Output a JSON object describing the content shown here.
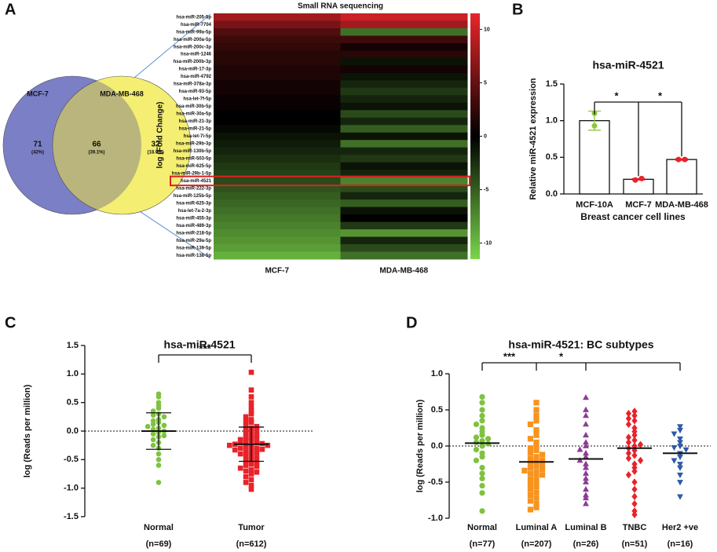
{
  "chart_data": [
    {
      "type": "venn",
      "sets": [
        "MCF-7",
        "MDA-MB-468"
      ],
      "colors": [
        "#7b7fc6",
        "#f4ee72"
      ],
      "overlap_color": "#b9b57c",
      "label_colors": [
        "#3b4aa6",
        "#8f8a2a"
      ],
      "values": [
        71,
        66,
        32
      ],
      "percents": [
        42,
        39.1,
        18.9
      ],
      "percent_labels": [
        "(42%)",
        "(39.1%)",
        "(18.9%)"
      ]
    },
    {
      "type": "heatmap",
      "title": "Small RNA sequencing",
      "ylabel": "log (Fold Change)",
      "rows": [
        "hsa-miR-205-5p",
        "hsa-miR-7704",
        "hsa-miR-99a-5p",
        "hsa-miR-200a-5p",
        "hsa-miR-200c-3p",
        "hsa-miR-1246",
        "hsa-miR-200b-3p",
        "hsa-miR-17-3p",
        "hsa-miR-4792",
        "hsa-miR-378a-3p",
        "hsa-miR-93-5p",
        "hsa-let-7f-5p",
        "hsa-miR-30b-5p",
        "hsa-miR-30a-5p",
        "hsa-miR-21-3p",
        "hsa-miR-21-5p",
        "hsa-let-7i-5p",
        "hsa-miR-29b-3p",
        "hsa-miR-130b-5p",
        "hsa-miR-503-5p",
        "hsa-miR-625-5p",
        "hsa-miR-29b-1-5p",
        "hsa-miR-4521",
        "hsa-miR-222-3p",
        "hsa-miR-125b-5p",
        "hsa-miR-625-3p",
        "hsa-let-7a-2-3p",
        "hsa-miR-455-3p",
        "hsa-miR-489-3p",
        "hsa-miR-218-5p",
        "hsa-miR-29a-5p",
        "hsa-miR-139-5p",
        "hsa-miR-138-5p"
      ],
      "series": [
        {
          "name": "MCF-7",
          "values": [
            8,
            6,
            4,
            3,
            2.5,
            2,
            2,
            1.5,
            1.5,
            1,
            1,
            0.5,
            0.5,
            0,
            0,
            -0.5,
            -1,
            -1.5,
            -2,
            -2.5,
            -3,
            -3.5,
            -4,
            -4.5,
            -5,
            -5.5,
            -6,
            -6.5,
            -7,
            -7.5,
            -8,
            -8.5,
            -9.5
          ]
        },
        {
          "name": "MDA-MB-468",
          "values": [
            10,
            8,
            -6,
            3,
            1,
            2,
            -1,
            1,
            -1,
            -2,
            -3,
            -2,
            -1,
            -4,
            -2,
            -5,
            -1,
            -6,
            -2,
            -3,
            -1,
            -2,
            -7,
            -4,
            -2,
            -5,
            -1,
            0,
            -3,
            -8,
            -2,
            -4,
            -6
          ]
        }
      ],
      "zlim": [
        -11.5,
        11.5
      ],
      "zticks": [
        10,
        5,
        0,
        -5,
        -10
      ],
      "high_color": "#e8262b",
      "mid_color": "#000000",
      "low_color": "#7bd54a",
      "highlight_row": 22
    },
    {
      "type": "bar",
      "title": "hsa-miR-4521",
      "ylabel": "Relative miR-4521 expression",
      "xlabel": "Breast cancer cell lines",
      "categories": [
        "MCF-10A",
        "MCF-7",
        "MDA-MB-468"
      ],
      "values": [
        1.0,
        0.2,
        0.47
      ],
      "errors": [
        0.13,
        0.01,
        0.01
      ],
      "points": [
        [
          1.1,
          0.93
        ],
        [
          0.19,
          0.21
        ],
        [
          0.47,
          0.47
        ]
      ],
      "point_colors": [
        "#8dc63f",
        "#e8232a",
        "#e8232a"
      ],
      "ylim": [
        0,
        1.5
      ],
      "yticks": [
        {
          "value": 0,
          "label": "0.0"
        },
        0.5,
        {
          "value": 1,
          "label": "1.0"
        },
        1.5
      ],
      "brackets": [
        {
          "from": 0,
          "to": 1,
          "label": "*"
        },
        {
          "from": 1,
          "to": 2,
          "label": "*"
        }
      ]
    },
    {
      "type": "dotplot",
      "title": "hsa-miR-4521",
      "ylabel": "log (Reads per million)",
      "categories": [
        "Normal",
        "Tumor"
      ],
      "sublabels": [
        "(n=69)",
        "(n=612)"
      ],
      "colors": [
        "#7fc241",
        "#e8232a"
      ],
      "markers": [
        "circle",
        "square"
      ],
      "points": [
        [
          0.65,
          0.6,
          0.5,
          0.45,
          0.4,
          0.35,
          0.3,
          0.28,
          0.25,
          0.2,
          0.18,
          0.15,
          0.12,
          0.1,
          0.08,
          0.05,
          0.03,
          0.0,
          -0.02,
          -0.05,
          -0.08,
          -0.1,
          -0.15,
          -0.2,
          -0.25,
          -0.3,
          -0.4,
          -0.5,
          -0.6,
          -0.9
        ],
        [
          1.03,
          0.72,
          0.6,
          0.5,
          0.42,
          0.35,
          0.3,
          0.25,
          0.2,
          0.18,
          0.15,
          0.1,
          0.08,
          0.05,
          0.02,
          0.0,
          -0.02,
          -0.05,
          -0.07,
          -0.1,
          -0.12,
          -0.13,
          -0.15,
          -0.17,
          -0.18,
          -0.2,
          -0.2,
          -0.22,
          -0.23,
          -0.25,
          -0.25,
          -0.27,
          -0.28,
          -0.3,
          -0.3,
          -0.32,
          -0.33,
          -0.35,
          -0.37,
          -0.38,
          -0.4,
          -0.42,
          -0.45,
          -0.47,
          -0.5,
          -0.52,
          -0.55,
          -0.58,
          -0.6,
          -0.62,
          -0.65,
          -0.68,
          -0.7,
          -0.72,
          -0.75,
          -0.8,
          -0.85,
          -0.9,
          -0.95,
          -1.02
        ]
      ],
      "means": [
        0.0,
        -0.23
      ],
      "sds": [
        0.32,
        0.3
      ],
      "ylim": [
        -1.5,
        1.5
      ],
      "yticks": [
        1.5,
        {
          "value": 1,
          "label": "1.0"
        },
        0.5,
        {
          "value": 0,
          "label": "0.0"
        },
        -0.5,
        {
          "value": -1,
          "label": "-1.0"
        },
        -1.5
      ],
      "brackets": [
        {
          "from": 0,
          "to": 1,
          "label": "***"
        }
      ]
    },
    {
      "type": "dotplot",
      "title": "hsa-miR-4521: BC subtypes",
      "ylabel": "log (Reads per million)",
      "categories": [
        "Normal",
        "Luminal A",
        "Luminal B",
        "TNBC",
        "Her2 +ve"
      ],
      "sublabels": [
        "(n=77)",
        "(n=207)",
        "(n=26)",
        "(n=51)",
        "(n=16)"
      ],
      "colors": [
        "#7fc241",
        "#f7931e",
        "#8e3b96",
        "#e8232a",
        "#2e5aa8"
      ],
      "markers": [
        "circle",
        "square",
        "triangle-up",
        "diamond",
        "triangle-down"
      ],
      "points": [
        [
          0.68,
          0.6,
          0.5,
          0.42,
          0.35,
          0.3,
          0.25,
          0.2,
          0.15,
          0.12,
          0.1,
          0.07,
          0.05,
          0.03,
          0.0,
          -0.05,
          -0.1,
          -0.15,
          -0.2,
          -0.3,
          -0.38,
          -0.45,
          -0.55,
          -0.65,
          -0.9
        ],
        [
          0.6,
          0.5,
          0.42,
          0.35,
          0.3,
          0.22,
          0.15,
          0.1,
          0.05,
          0.0,
          -0.03,
          -0.06,
          -0.1,
          -0.12,
          -0.15,
          -0.18,
          -0.2,
          -0.22,
          -0.24,
          -0.26,
          -0.28,
          -0.3,
          -0.32,
          -0.34,
          -0.36,
          -0.38,
          -0.4,
          -0.43,
          -0.46,
          -0.5,
          -0.53,
          -0.56,
          -0.6,
          -0.64,
          -0.68,
          -0.72,
          -0.76,
          -0.8,
          -0.85,
          -0.88
        ],
        [
          0.67,
          0.5,
          0.42,
          0.3,
          0.15,
          0.05,
          0.0,
          -0.05,
          -0.1,
          -0.15,
          -0.2,
          -0.25,
          -0.3,
          -0.38,
          -0.45,
          -0.5,
          -0.6,
          -0.68,
          -0.72,
          -0.8
        ],
        [
          0.48,
          0.45,
          0.42,
          0.38,
          0.35,
          0.3,
          0.25,
          0.2,
          0.15,
          0.12,
          0.08,
          0.05,
          0.02,
          0.0,
          -0.03,
          -0.06,
          -0.1,
          -0.13,
          -0.17,
          -0.2,
          -0.25,
          -0.3,
          -0.35,
          -0.4,
          -0.5,
          -0.6,
          -0.7,
          -0.8,
          -0.9,
          -0.95
        ],
        [
          0.27,
          0.22,
          0.17,
          0.1,
          0.05,
          0.0,
          -0.02,
          -0.05,
          -0.1,
          -0.15,
          -0.2,
          -0.25,
          -0.3,
          -0.4,
          -0.5,
          -0.7
        ]
      ],
      "means": [
        0.04,
        -0.22,
        -0.18,
        -0.03,
        -0.1
      ],
      "ylim": [
        -1,
        1
      ],
      "yticks": [
        {
          "value": 1,
          "label": "1.0"
        },
        0.5,
        {
          "value": 0,
          "label": "0.0"
        },
        -0.5,
        {
          "value": -1,
          "label": "-1.0"
        }
      ],
      "brackets": [
        {
          "from": 0,
          "to": 1,
          "label": "***"
        },
        {
          "from": 1,
          "to": 2,
          "label": "*"
        },
        {
          "from": 2,
          "to": 4
        }
      ]
    }
  ],
  "panels": [
    "A",
    "B",
    "C",
    "D"
  ]
}
